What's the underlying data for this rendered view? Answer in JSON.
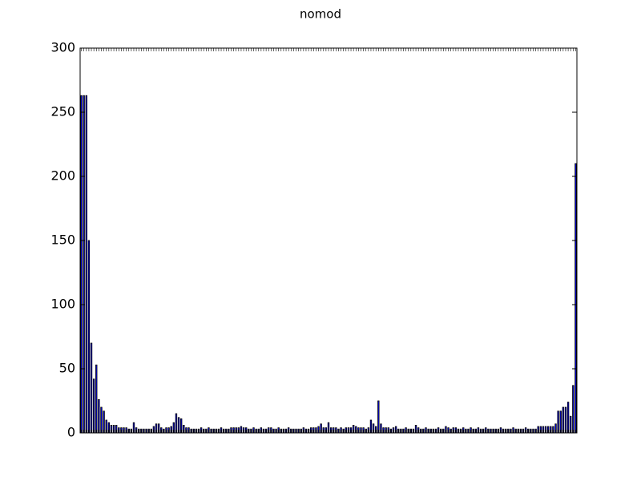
{
  "chart_data": {
    "type": "bar",
    "title": "nomod",
    "color": "#0000ff",
    "categories": [
      null,
      null,
      null,
      null,
      null,
      null,
      null,
      null,
      null,
      null,
      null,
      null,
      null,
      null,
      null,
      null,
      null,
      null,
      null,
      null,
      null,
      null,
      null,
      null,
      null,
      null,
      null,
      null,
      null,
      null,
      null,
      null,
      null,
      null,
      null,
      null,
      null,
      null,
      null,
      null,
      null,
      null,
      null,
      null,
      null,
      null,
      null,
      null,
      null,
      null,
      null,
      null,
      null,
      null,
      null,
      null,
      null,
      null,
      null,
      null,
      null,
      null,
      null,
      null,
      null,
      null,
      null,
      null,
      null,
      null,
      null,
      null,
      null,
      null,
      null,
      null,
      null,
      null,
      null,
      null,
      null,
      null,
      null,
      null,
      null,
      null,
      null,
      null,
      null,
      null,
      null,
      null,
      null,
      null,
      null,
      null,
      null,
      null,
      null,
      null,
      null,
      null,
      null,
      null,
      null,
      null,
      null,
      null,
      null,
      null,
      null,
      null,
      null,
      null,
      null,
      null,
      null,
      null,
      null,
      null,
      null,
      null,
      null,
      null,
      null,
      null,
      null,
      null,
      null,
      null,
      null,
      null,
      null,
      null,
      null,
      null,
      null,
      null,
      null,
      null,
      null,
      null,
      null,
      null,
      null,
      null,
      null,
      null,
      null,
      null,
      null,
      null,
      null,
      null,
      null,
      null,
      null,
      null,
      null,
      null,
      null,
      null,
      null,
      null,
      null,
      null,
      null,
      null,
      null,
      null,
      null,
      null,
      null,
      null,
      null,
      null,
      null,
      null,
      null,
      null,
      null,
      null,
      null,
      null,
      null,
      null,
      null,
      null,
      null,
      null,
      null,
      null,
      null,
      null,
      null,
      null,
      null,
      null,
      null
    ],
    "values": [
      263,
      263,
      263,
      150,
      70,
      42,
      53,
      26,
      20,
      17,
      10,
      8,
      6,
      6,
      6,
      4,
      4,
      4,
      4,
      3,
      3,
      8,
      4,
      3,
      3,
      3,
      3,
      3,
      3,
      5,
      7,
      7,
      4,
      3,
      4,
      4,
      5,
      8,
      15,
      12,
      11,
      6,
      4,
      4,
      3,
      3,
      3,
      3,
      4,
      3,
      3,
      4,
      3,
      3,
      3,
      3,
      4,
      3,
      3,
      3,
      4,
      4,
      4,
      4,
      5,
      4,
      4,
      3,
      3,
      4,
      3,
      3,
      4,
      3,
      3,
      4,
      4,
      3,
      3,
      4,
      3,
      3,
      3,
      4,
      3,
      3,
      3,
      3,
      3,
      4,
      3,
      3,
      4,
      4,
      4,
      5,
      7,
      4,
      4,
      8,
      4,
      4,
      4,
      3,
      4,
      3,
      4,
      4,
      4,
      6,
      5,
      4,
      4,
      4,
      3,
      4,
      10,
      7,
      5,
      25,
      7,
      4,
      4,
      4,
      3,
      4,
      5,
      3,
      3,
      3,
      4,
      3,
      3,
      3,
      6,
      4,
      3,
      3,
      4,
      3,
      3,
      3,
      3,
      4,
      3,
      3,
      5,
      4,
      3,
      4,
      4,
      3,
      3,
      4,
      3,
      3,
      4,
      3,
      3,
      4,
      3,
      3,
      4,
      3,
      3,
      3,
      3,
      3,
      4,
      3,
      3,
      3,
      3,
      4,
      3,
      3,
      3,
      3,
      4,
      3,
      3,
      3,
      3,
      5,
      5,
      5,
      5,
      5,
      5,
      5,
      7,
      17,
      17,
      20,
      20,
      24,
      13,
      37,
      210
    ],
    "ylim": [
      0,
      300
    ],
    "yticks": [
      0,
      50,
      100,
      150,
      200,
      250,
      300
    ]
  }
}
